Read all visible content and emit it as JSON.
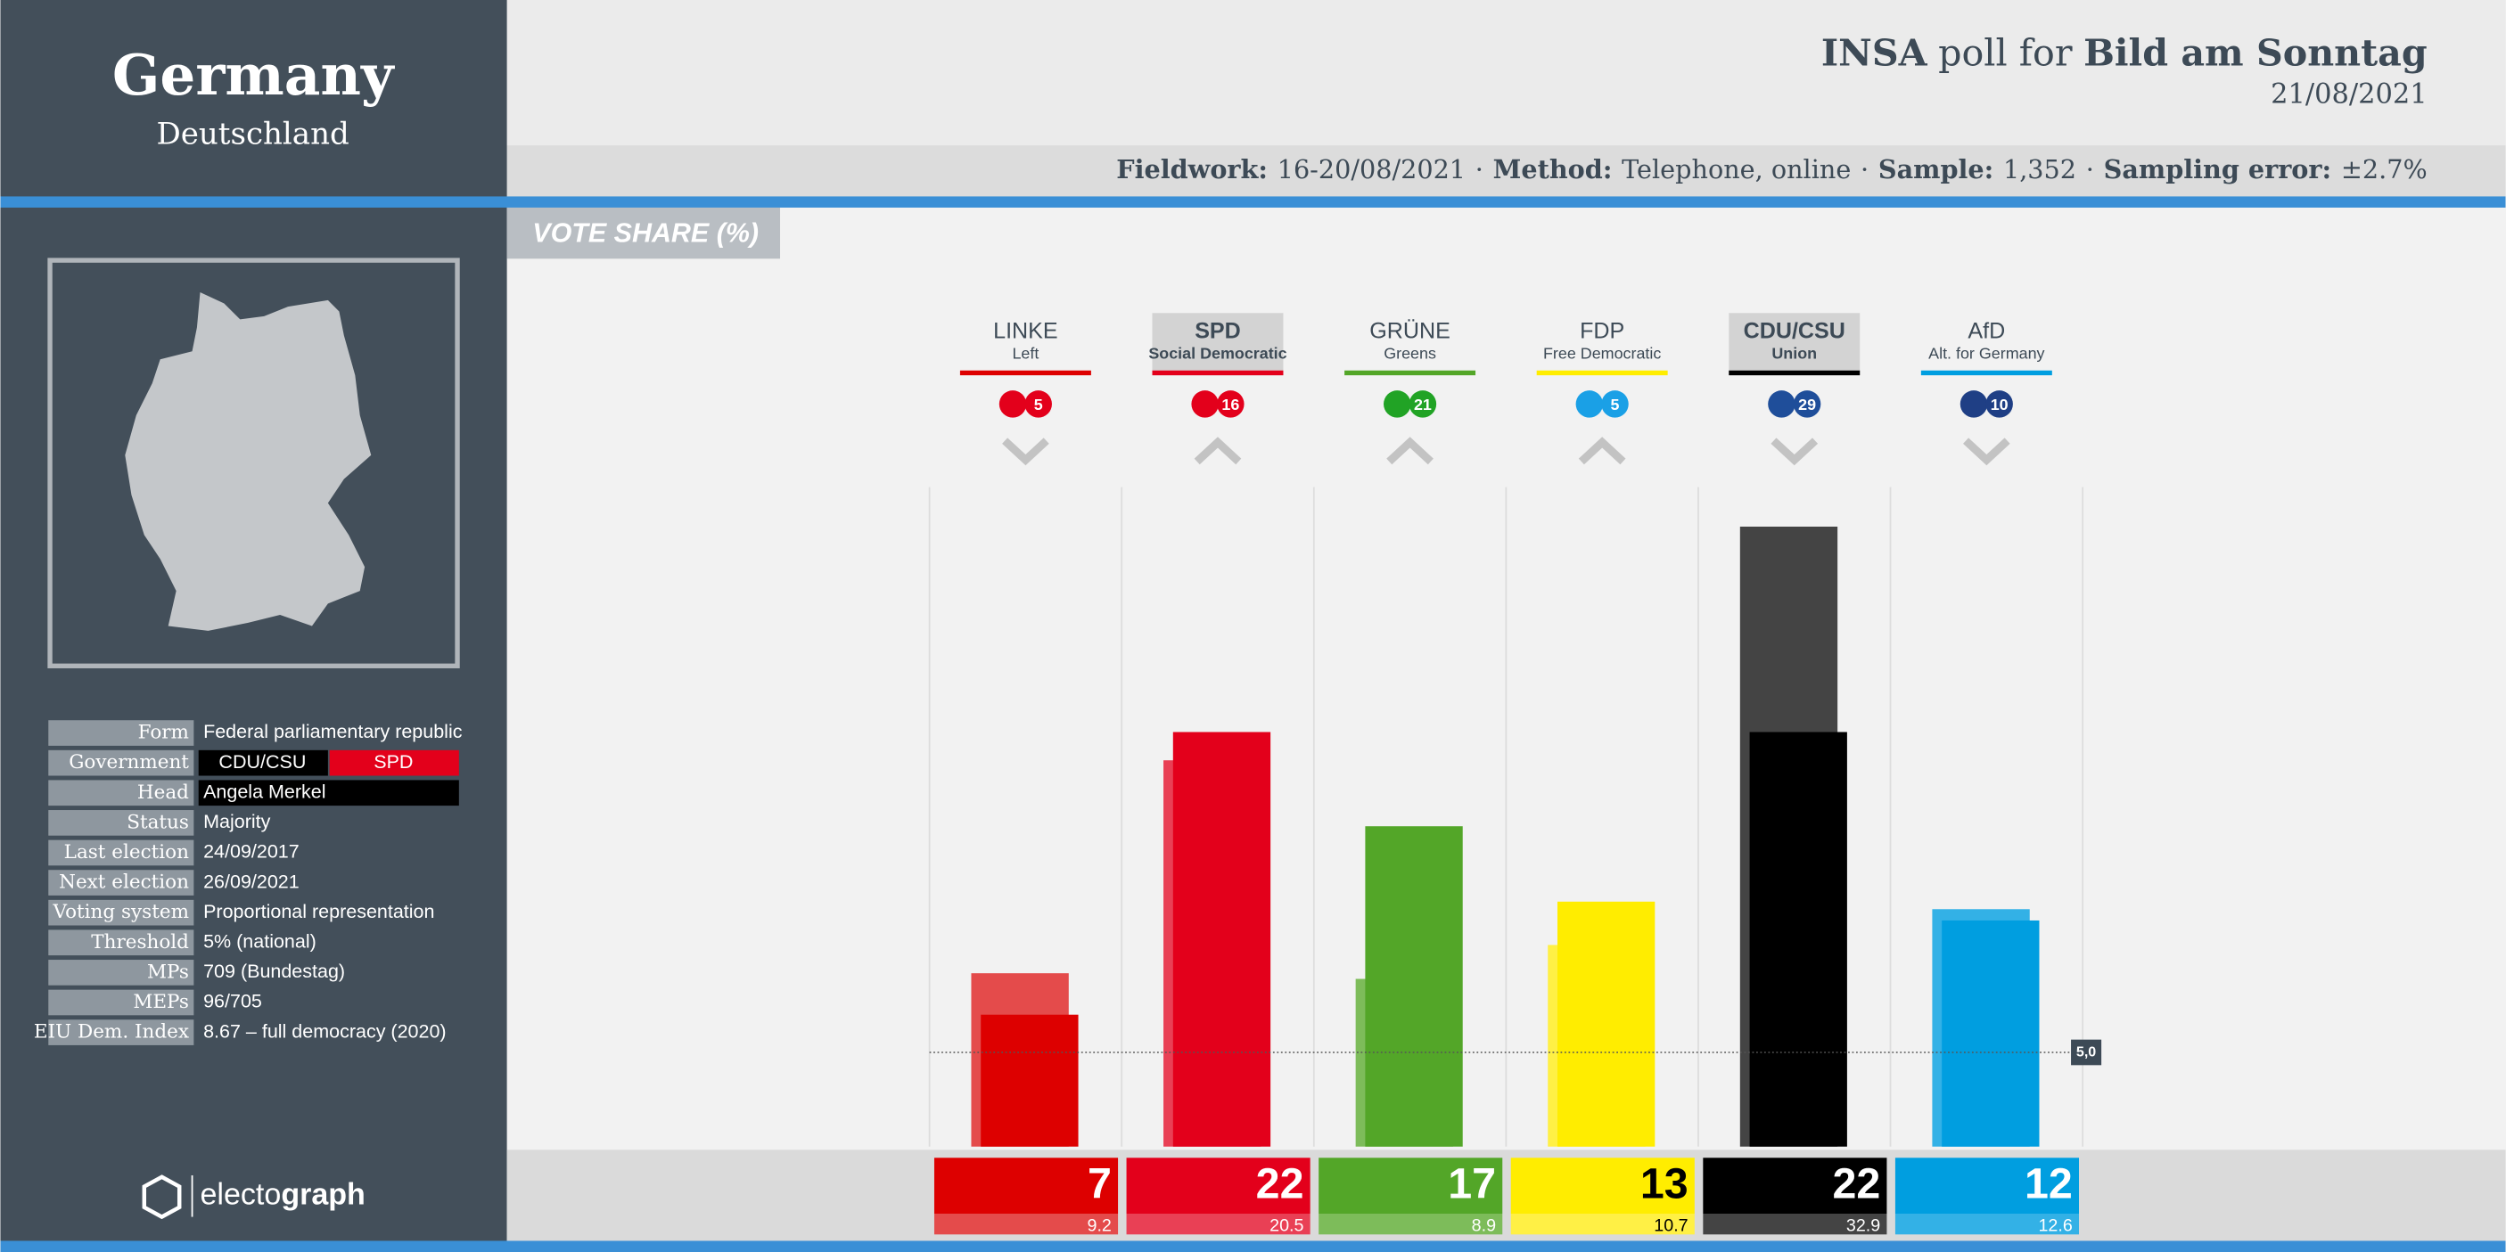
{
  "sidebar": {
    "country": "Germany",
    "native": "Deutschland",
    "info": [
      {
        "label": "Form",
        "value": "Federal parliamentary republic"
      },
      {
        "label": "Government",
        "parties": [
          {
            "name": "CDU/CSU",
            "color": "#000000"
          },
          {
            "name": "SPD",
            "color": "#e3001b"
          }
        ]
      },
      {
        "label": "Head",
        "value": "Angela Merkel",
        "highlight": "#000000"
      },
      {
        "label": "Status",
        "value": "Majority"
      },
      {
        "label": "Last election",
        "value": "24/09/2017"
      },
      {
        "label": "Next election",
        "value": "26/09/2021"
      },
      {
        "label": "Voting system",
        "value": "Proportional representation"
      },
      {
        "label": "Threshold",
        "value": "5% (national)"
      },
      {
        "label": "MPs",
        "value": "709 (Bundestag)"
      },
      {
        "label": "MEPs",
        "value": "96/705"
      },
      {
        "label": "EIU Dem. Index",
        "value": "8.67 – full democracy (2020)"
      }
    ],
    "brand_light": "electo",
    "brand_bold": "graph"
  },
  "header": {
    "pollster": "INSA",
    "poll_for": "poll for",
    "client": "Bild am Sonntag",
    "date": "21/08/2021",
    "separator": "·",
    "details": [
      {
        "label": "Fieldwork:",
        "value": "16-20/08/2021"
      },
      {
        "label": "Method:",
        "value": "Telephone, online"
      },
      {
        "label": "Sample:",
        "value": "1,352"
      },
      {
        "label": "Sampling error:",
        "value": "±2.7%"
      }
    ]
  },
  "chart_data": {
    "type": "bar",
    "title": "VOTE SHARE (%)",
    "categories": [
      "LINKE",
      "SPD",
      "GRÜNE",
      "FDP",
      "CDU/CSU",
      "AfD"
    ],
    "subtitles": [
      "Left",
      "Social Democratic",
      "Greens",
      "Free Democratic",
      "Union",
      "Alt. for Germany"
    ],
    "values": [
      7,
      22,
      17,
      13,
      22,
      12
    ],
    "previous": [
      9.2,
      20.5,
      8.9,
      10.7,
      32.9,
      12.6
    ],
    "colors": [
      "#dd0000",
      "#e3001b",
      "#53a628",
      "#ffed00",
      "#000000",
      "#009ee0"
    ],
    "previous_colors": [
      "#e44b4b",
      "#e94055",
      "#7dbc5a",
      "#fff045",
      "#444444",
      "#33b1e6"
    ],
    "text_colors": [
      "#ffffff",
      "#ffffff",
      "#ffffff",
      "#000000",
      "#ffffff",
      "#ffffff"
    ],
    "badges": [
      5,
      16,
      21,
      5,
      29,
      10
    ],
    "badge_colors": [
      "#e3001b",
      "#e3001b",
      "#21a325",
      "#1aa0e6",
      "#1f4e9a",
      "#1f3f85"
    ],
    "trend": [
      "down",
      "up",
      "up",
      "up",
      "down",
      "down"
    ],
    "government": [
      false,
      true,
      false,
      false,
      true,
      false
    ],
    "threshold": {
      "value": 5,
      "label": "5,0"
    },
    "ylim": [
      0,
      35
    ]
  }
}
